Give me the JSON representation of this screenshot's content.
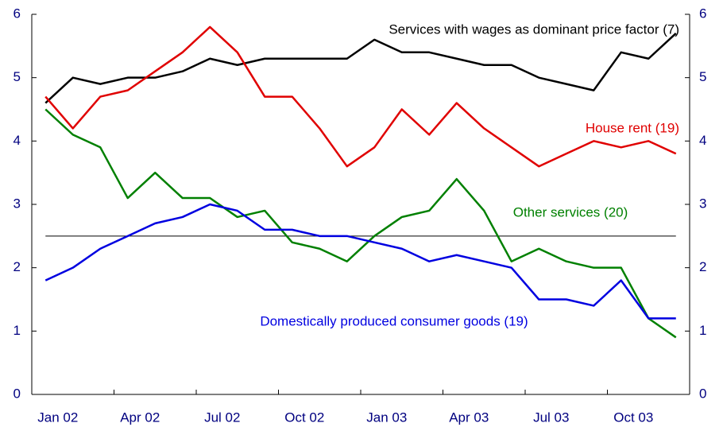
{
  "chart_data": {
    "type": "line",
    "categories": [
      "Jan 02",
      null,
      null,
      "Apr 02",
      null,
      null,
      "Jul 02",
      null,
      null,
      "Oct 02",
      null,
      null,
      "Jan 03",
      null,
      null,
      "Apr 03",
      null,
      null,
      "Jul 03",
      null,
      null,
      "Oct 03",
      null,
      null
    ],
    "series": [
      {
        "name": "Services with wages as dominant price factor (7)",
        "color": "#000000",
        "values": [
          4.6,
          5.0,
          4.9,
          5.0,
          5.0,
          5.1,
          5.3,
          5.2,
          5.3,
          5.3,
          5.3,
          5.3,
          5.6,
          5.4,
          5.4,
          5.3,
          5.2,
          5.2,
          5.0,
          4.9,
          4.8,
          5.4,
          5.3,
          5.7
        ]
      },
      {
        "name": "House rent (19)",
        "color": "#e00000",
        "values": [
          4.7,
          4.2,
          4.7,
          4.8,
          5.1,
          5.4,
          5.8,
          5.4,
          4.7,
          4.7,
          4.2,
          3.6,
          3.9,
          4.5,
          4.1,
          4.6,
          4.2,
          3.9,
          3.6,
          3.8,
          4.0,
          3.9,
          4.0,
          3.8
        ]
      },
      {
        "name": "Other services (20)",
        "color": "#008000",
        "values": [
          4.5,
          4.1,
          3.9,
          3.1,
          3.5,
          3.1,
          3.1,
          2.8,
          2.9,
          2.4,
          2.3,
          2.1,
          2.5,
          2.8,
          2.9,
          3.4,
          2.9,
          2.1,
          2.3,
          2.1,
          2.0,
          2.0,
          1.2,
          0.9
        ]
      },
      {
        "name": "Domestically produced consumer goods (19)",
        "color": "#0000e0",
        "values": [
          1.8,
          2.0,
          2.3,
          2.5,
          2.7,
          2.8,
          3.0,
          2.9,
          2.6,
          2.6,
          2.5,
          2.5,
          2.4,
          2.3,
          2.1,
          2.2,
          2.1,
          2.0,
          1.5,
          1.5,
          1.4,
          1.8,
          1.2,
          1.2
        ]
      }
    ],
    "reference_line": 2.5,
    "ylim": [
      0,
      6
    ],
    "yticks": [
      0,
      1,
      2,
      3,
      4,
      5,
      6
    ],
    "y2lim": [
      0,
      6
    ],
    "y2ticks": [
      0,
      1,
      2,
      3,
      4,
      5,
      6
    ]
  }
}
